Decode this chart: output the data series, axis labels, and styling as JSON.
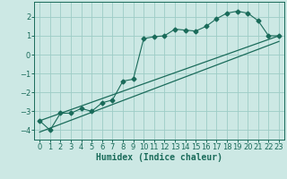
{
  "title": "",
  "xlabel": "Humidex (Indice chaleur)",
  "ylabel": "",
  "bg_color": "#cce8e4",
  "grid_color": "#9dccc6",
  "line_color": "#1a6b5a",
  "xlim": [
    -0.5,
    23.5
  ],
  "ylim": [
    -4.5,
    2.8
  ],
  "yticks": [
    -4,
    -3,
    -2,
    -1,
    0,
    1,
    2
  ],
  "xticks": [
    0,
    1,
    2,
    3,
    4,
    5,
    6,
    7,
    8,
    9,
    10,
    11,
    12,
    13,
    14,
    15,
    16,
    17,
    18,
    19,
    20,
    21,
    22,
    23
  ],
  "scatter_x": [
    0,
    1,
    2,
    3,
    4,
    5,
    6,
    7,
    8,
    9,
    10,
    11,
    12,
    13,
    14,
    15,
    16,
    17,
    18,
    19,
    20,
    21,
    22,
    23
  ],
  "scatter_y": [
    -3.5,
    -4.0,
    -3.1,
    -3.1,
    -2.85,
    -3.0,
    -2.55,
    -2.4,
    -1.4,
    -1.3,
    0.85,
    0.95,
    1.0,
    1.35,
    1.3,
    1.25,
    1.5,
    1.9,
    2.2,
    2.3,
    2.2,
    1.8,
    1.0,
    1.0
  ],
  "line1_x": [
    0,
    23
  ],
  "line1_y": [
    -3.5,
    1.0
  ],
  "line2_x": [
    0,
    23
  ],
  "line2_y": [
    -4.1,
    0.7
  ],
  "xlabel_fontsize": 7,
  "tick_fontsize": 6
}
